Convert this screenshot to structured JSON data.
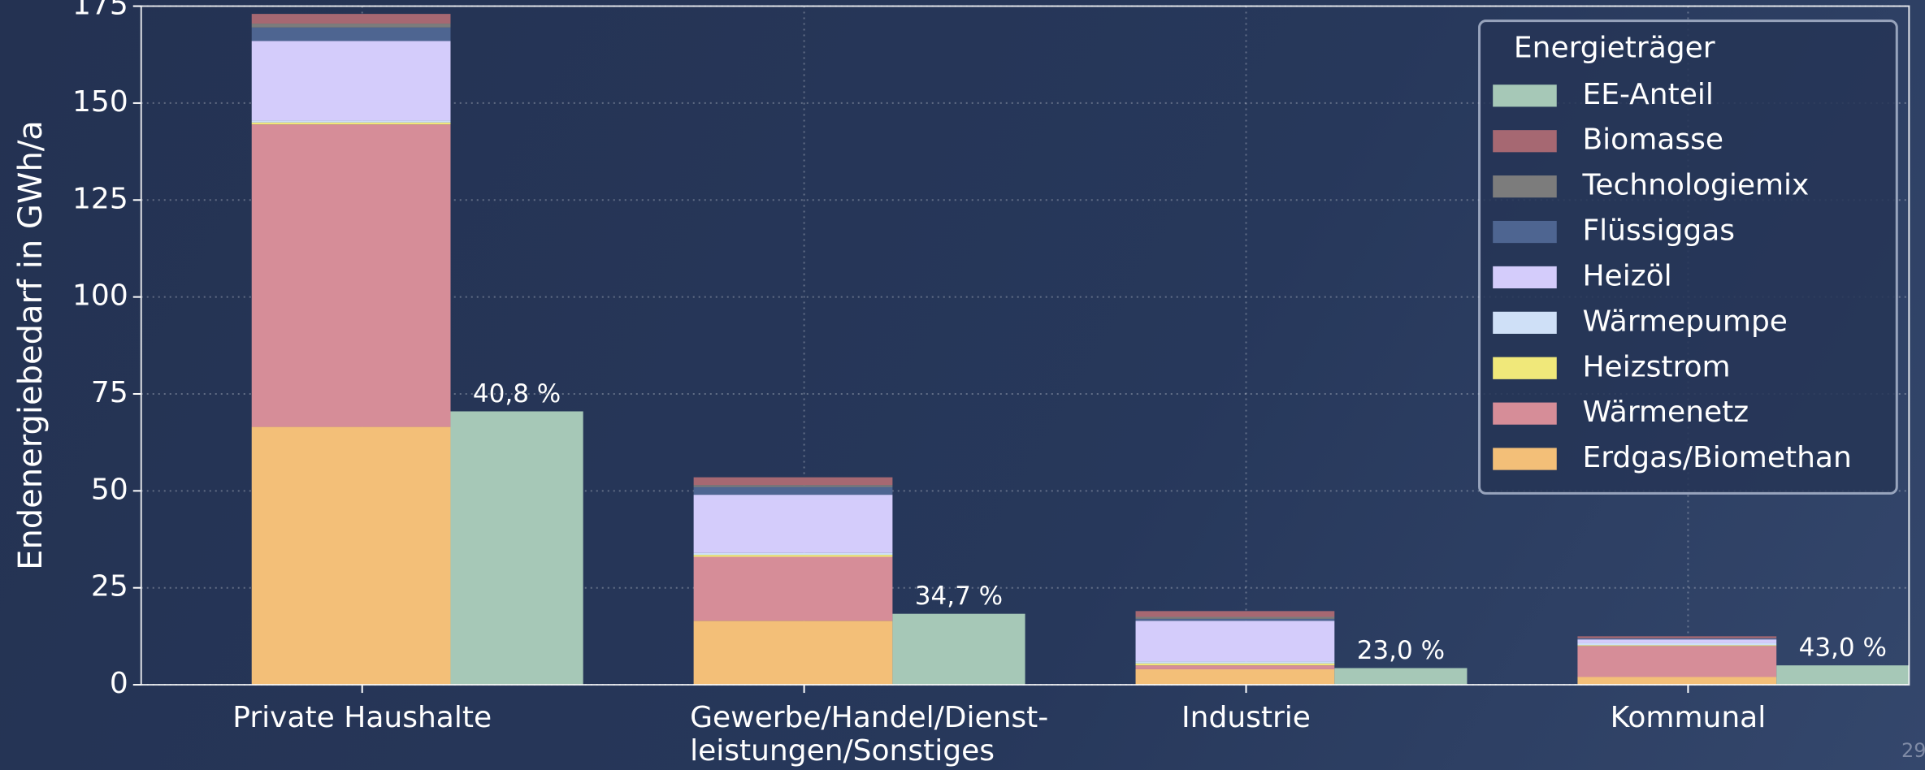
{
  "chart_data": {
    "type": "grouped_stacked_bar",
    "ylabel": "Endenergiebedarf in GWh/a",
    "categories": [
      "Private Haushalte",
      "Gewerbe/Handel/Dienst-\nleistungen/Sonstiges",
      "Industrie",
      "Kommunal"
    ],
    "series": [
      {
        "name": "Erdgas/Biomethan",
        "color": "#f3bf78",
        "stack": true,
        "values": [
          66.5,
          16.5,
          4,
          2
        ]
      },
      {
        "name": "Wärmenetz",
        "color": "#d68d98",
        "stack": true,
        "values": [
          78,
          16.5,
          1,
          8
        ]
      },
      {
        "name": "Heizstrom",
        "color": "#f0e87a",
        "stack": true,
        "values": [
          0.5,
          0.5,
          0.5,
          0.2
        ]
      },
      {
        "name": "Wärmepumpe",
        "color": "#cfe0f7",
        "stack": true,
        "values": [
          0.5,
          0.5,
          0.5,
          0.5
        ]
      },
      {
        "name": "Heizöl",
        "color": "#d4ccfb",
        "stack": true,
        "values": [
          20.5,
          15,
          10.5,
          1
        ]
      },
      {
        "name": "Flüssiggas",
        "color": "#4e6591",
        "stack": true,
        "values": [
          3.5,
          2,
          0.5,
          0.3
        ]
      },
      {
        "name": "Technologiemix",
        "color": "#7c7c7c",
        "stack": true,
        "values": [
          1,
          0.5,
          0.5,
          0
        ]
      },
      {
        "name": "Biomasse",
        "color": "#a66872",
        "stack": true,
        "values": [
          2.5,
          2,
          1.5,
          0.5
        ]
      },
      {
        "name": "EE-Anteil",
        "color": "#a6c8b7",
        "stack": false,
        "values": [
          70.5,
          18.3,
          4.3,
          5
        ],
        "annotations": [
          "40,8 %",
          "34,7 %",
          "23,0 %",
          "43,0 %"
        ]
      }
    ],
    "legend_title": "Energieträger",
    "legend": "upper right",
    "ylim": [
      0,
      175
    ],
    "yticks": [
      0,
      25,
      50,
      75,
      100,
      125,
      150,
      175
    ],
    "grid": true,
    "page_number": "29"
  }
}
